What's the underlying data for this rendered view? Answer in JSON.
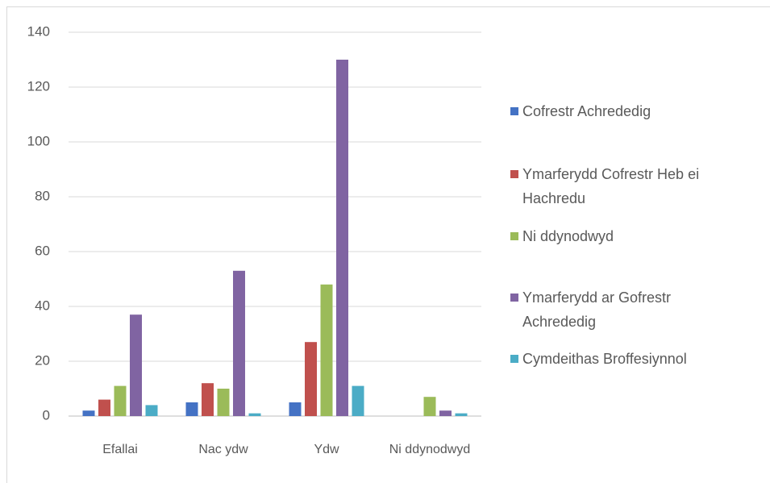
{
  "chart_data": {
    "type": "bar",
    "categories": [
      "Efallai",
      "Nac ydw",
      "Ydw",
      "Ni ddynodwyd"
    ],
    "series": [
      {
        "name": "Cofrestr Achrededig",
        "color": "#4472c4",
        "values": [
          2,
          5,
          5,
          0
        ]
      },
      {
        "name": "Ymarferydd Cofrestr Heb ei Hachredu",
        "color": "#c0504d",
        "values": [
          6,
          12,
          27,
          0
        ]
      },
      {
        "name": "Ni ddynodwyd",
        "color": "#9bbb59",
        "values": [
          11,
          10,
          48,
          7
        ]
      },
      {
        "name": "Ymarferydd ar Gofrestr Achrededig",
        "color": "#8064a2",
        "values": [
          37,
          53,
          130,
          2
        ]
      },
      {
        "name": "Cymdeithas Broffesiynnol",
        "color": "#4bacc6",
        "values": [
          4,
          1,
          11,
          1
        ]
      }
    ],
    "ylim": [
      0,
      140
    ],
    "yticks": [
      0,
      20,
      40,
      60,
      80,
      100,
      120,
      140
    ],
    "grid": true,
    "legend": "right"
  }
}
